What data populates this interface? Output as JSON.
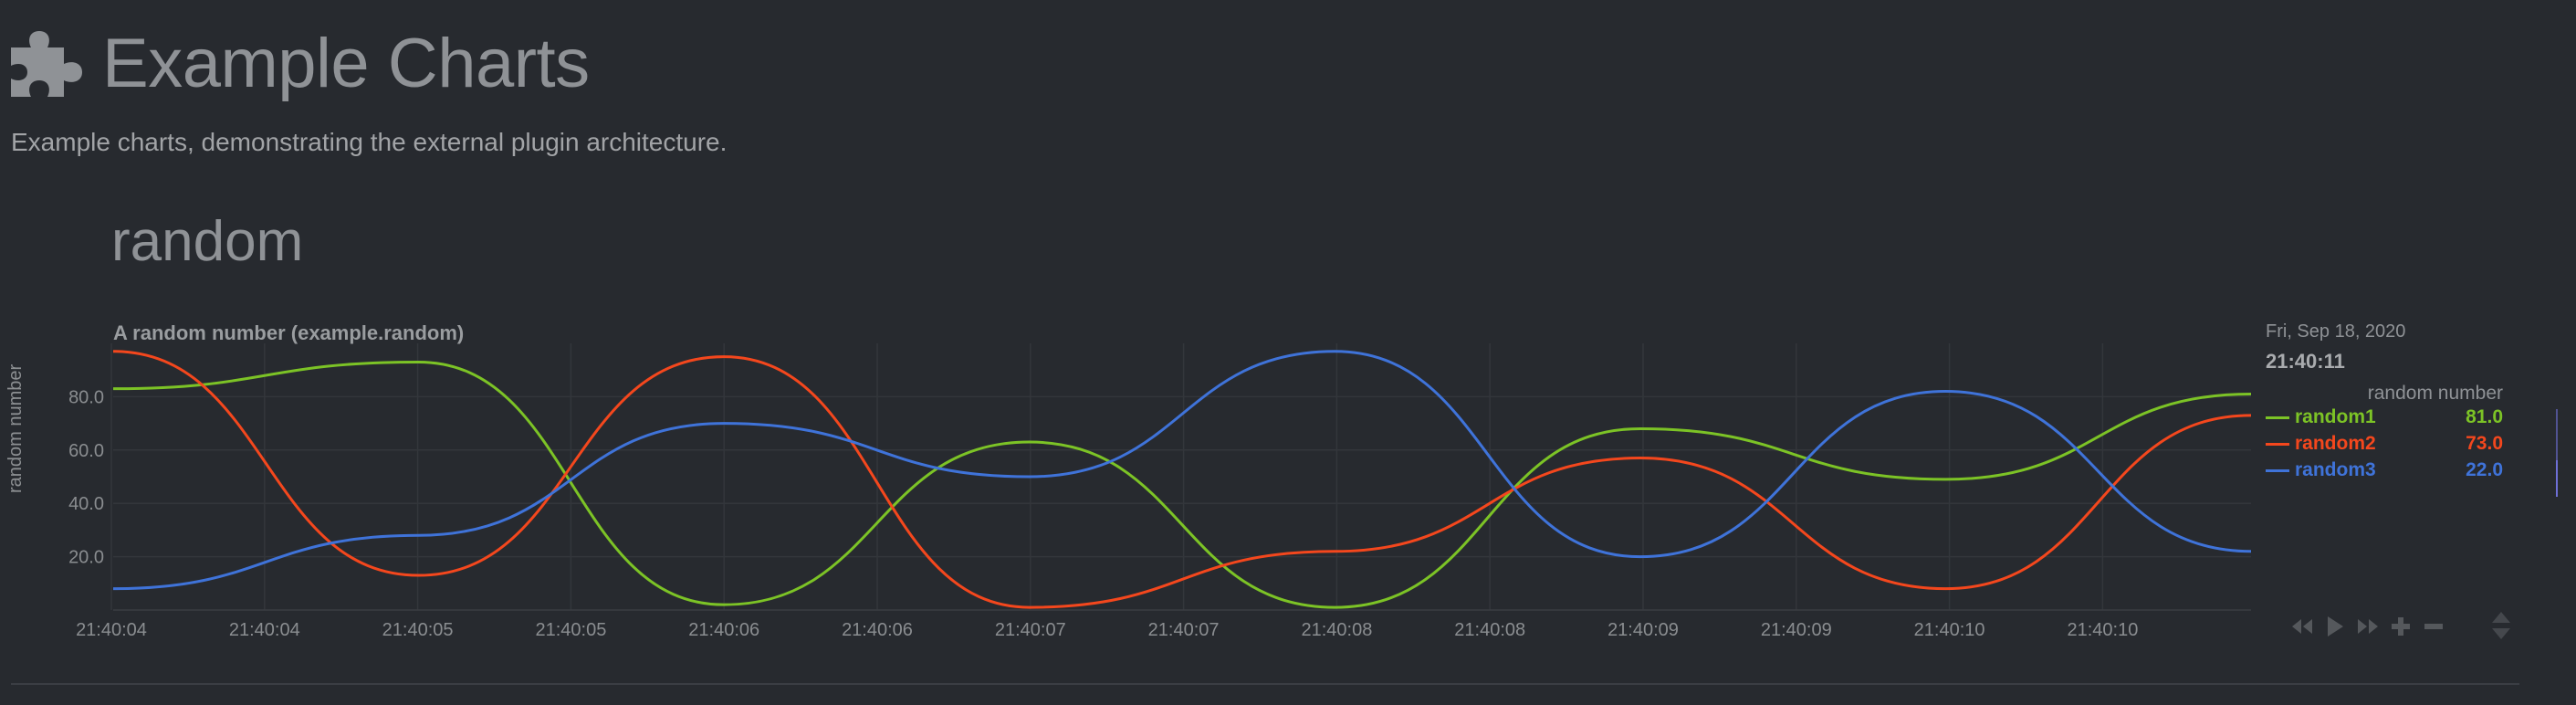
{
  "page": {
    "title": "Example Charts",
    "subtitle": "Example charts, demonstrating the external plugin architecture.",
    "section_title": "random",
    "icon": "puzzle-piece-icon"
  },
  "chart_data": {
    "type": "line",
    "title": "A random number (example.random)",
    "ylabel": "random number",
    "ylim": [
      0,
      100
    ],
    "y_ticks": [
      20.0,
      40.0,
      60.0,
      80.0
    ],
    "y_tick_labels": [
      "20.0",
      "40.0",
      "60.0",
      "80.0"
    ],
    "x": [
      0,
      1,
      2,
      3,
      4,
      5,
      6,
      7
    ],
    "x_tick_labels": [
      "21:40:04",
      "21:40:04",
      "21:40:05",
      "21:40:05",
      "21:40:06",
      "21:40:06",
      "21:40:07",
      "21:40:07",
      "21:40:08",
      "21:40:08",
      "21:40:09",
      "21:40:09",
      "21:40:10",
      "21:40:10"
    ],
    "grid": true,
    "legend_position": "right",
    "series": [
      {
        "name": "random1",
        "color": "#7cc326",
        "values": [
          83,
          93,
          2,
          63,
          1,
          68,
          49,
          81
        ]
      },
      {
        "name": "random2",
        "color": "#f4471d",
        "values": [
          97,
          13,
          95,
          1,
          22,
          57,
          8,
          73
        ]
      },
      {
        "name": "random3",
        "color": "#3f73d9",
        "values": [
          8,
          28,
          70,
          50,
          97,
          20,
          82,
          22
        ]
      }
    ]
  },
  "legend": {
    "date": "Fri, Sep 18, 2020",
    "time": "21:40:11",
    "units": "random number",
    "values": [
      "81.0",
      "73.0",
      "22.0"
    ]
  },
  "controls": {
    "buttons": [
      "rewind-icon",
      "play-icon",
      "fast-forward-icon",
      "zoom-in-icon",
      "zoom-out-icon"
    ]
  },
  "colors": {
    "background": "#272a2f",
    "grid": "#33363b",
    "random1": "#7cc326",
    "random2": "#f4471d",
    "random3": "#3f73d9"
  }
}
